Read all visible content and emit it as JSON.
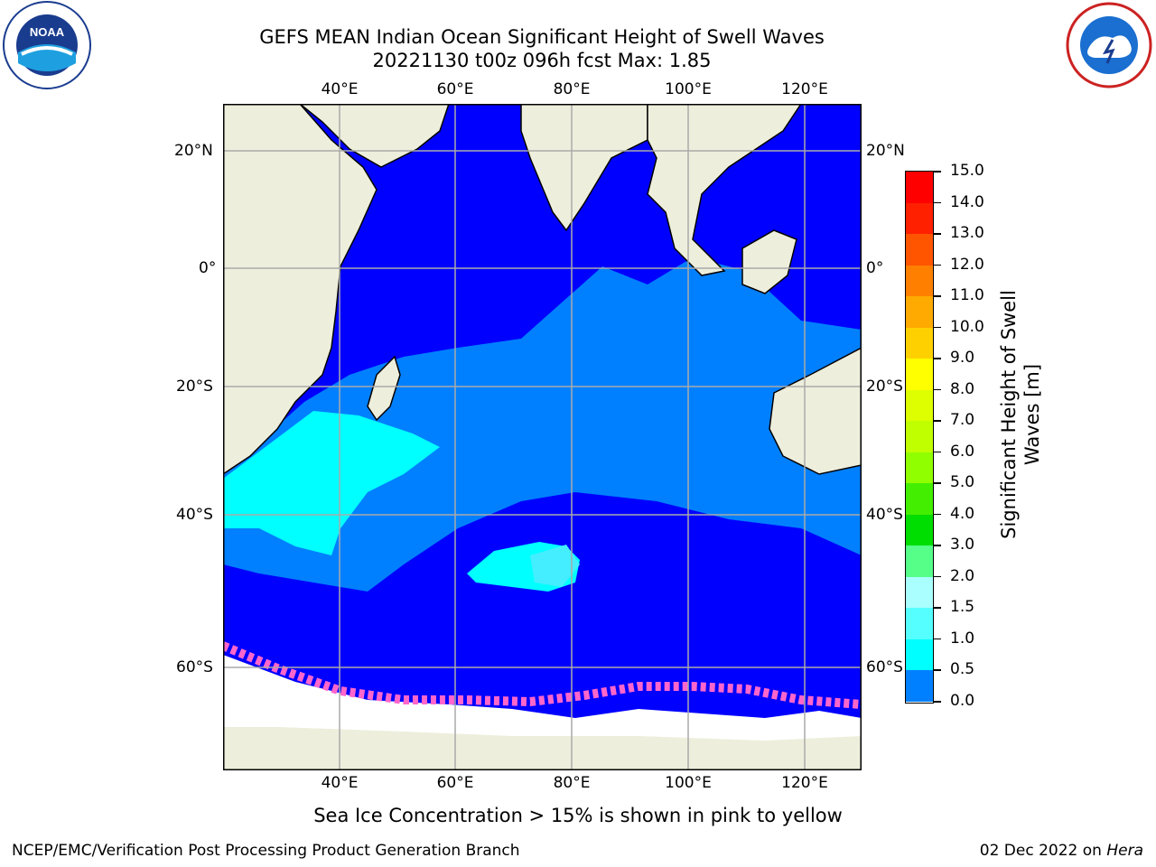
{
  "title": {
    "line1": "GEFS MEAN Indian Ocean Significant Height of Swell Waves",
    "line2": "20221130 t00z 096h fcst   Max: 1.85"
  },
  "logos": {
    "left": "noaa-logo",
    "right": "nws-logo"
  },
  "map": {
    "lon_labels": [
      "40°E",
      "60°E",
      "80°E",
      "100°E",
      "120°E"
    ],
    "lat_labels": [
      "20°N",
      "0°",
      "20°S",
      "40°S",
      "60°S"
    ],
    "colors": {
      "ocean_low": "#0000ff",
      "ocean_mid": "#0080ff",
      "ocean_high": "#00ffff",
      "land": "#eeeedd",
      "ice": "#ff66cc"
    }
  },
  "colorbar": {
    "title_line1": "Significant Height of Swell",
    "title_line2": "Waves [m]",
    "ticks": [
      "15.0",
      "14.0",
      "13.0",
      "12.0",
      "11.0",
      "10.0",
      "9.0",
      "8.0",
      "7.0",
      "6.0",
      "5.0",
      "4.0",
      "3.0",
      "2.0",
      "1.5",
      "1.0",
      "0.5",
      "0.0"
    ],
    "colors": [
      "#ff0000",
      "#ff2000",
      "#ff5500",
      "#ff8000",
      "#ffaa00",
      "#ffd000",
      "#ffff00",
      "#ddff00",
      "#c0ff00",
      "#90ff00",
      "#44ee00",
      "#00dd00",
      "#55ff88",
      "#aaffff",
      "#55ffff",
      "#00ffff",
      "#0080ff",
      "#0000ff"
    ]
  },
  "caption": "Sea Ice Concentration > 15% is shown in pink to yellow",
  "footer": {
    "left": "NCEP/EMC/Verification Post Processing Product Generation Branch",
    "right_date": "02 Dec 2022 on ",
    "right_host": "Hera"
  }
}
